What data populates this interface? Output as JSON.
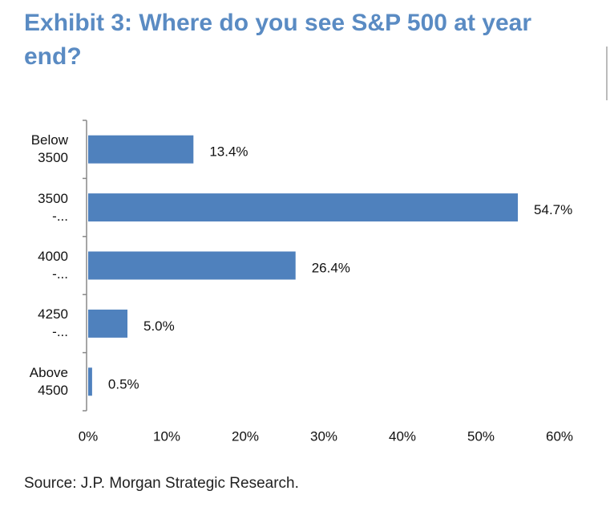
{
  "chart_data": {
    "type": "bar",
    "orientation": "horizontal",
    "title": "Exhibit 3: Where do you see S&P 500 at year end?",
    "categories": [
      "Below\n3500",
      "3500\n-...",
      "4000\n-...",
      "4250\n-...",
      "Above\n4500"
    ],
    "values": [
      13.4,
      54.7,
      26.4,
      5.0,
      0.5
    ],
    "value_labels": [
      "13.4%",
      "54.7%",
      "26.4%",
      "5.0%",
      "0.5%"
    ],
    "color": "#4f81bd",
    "xlim": [
      0,
      60
    ],
    "xticks": [
      {
        "value": 0,
        "label": "0%"
      },
      {
        "value": 10,
        "label": "10%"
      },
      {
        "value": 20,
        "label": "20%"
      },
      {
        "value": 30,
        "label": "30%"
      },
      {
        "value": 40,
        "label": "40%"
      },
      {
        "value": 50,
        "label": "50%"
      },
      {
        "value": 60,
        "label": "60%"
      }
    ],
    "grid": false,
    "source": "Source: J.P. Morgan Strategic Research."
  }
}
